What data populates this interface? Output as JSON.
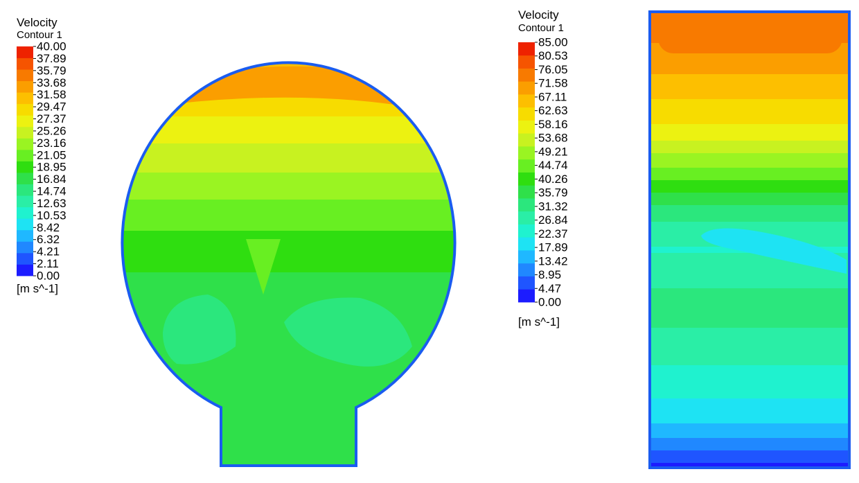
{
  "chart_data": [
    {
      "type": "heatmap",
      "title": "Velocity",
      "subtitle": "Contour 1",
      "unit": "[m s^-1]",
      "levels": [
        "0.00",
        "2.11",
        "4.21",
        "6.32",
        "8.42",
        "10.53",
        "12.63",
        "14.74",
        "16.84",
        "18.95",
        "21.05",
        "23.16",
        "25.26",
        "27.37",
        "29.47",
        "31.58",
        "33.68",
        "35.79",
        "37.89",
        "40.00"
      ],
      "range": [
        0,
        40
      ],
      "colormap": [
        "#1c1cff",
        "#1f55ff",
        "#2088ff",
        "#1fb8ff",
        "#1ee3f3",
        "#1ff2cf",
        "#2aeea6",
        "#2be77d",
        "#2fe04a",
        "#2fde10",
        "#68ef22",
        "#9af422",
        "#c8f220",
        "#ecf211",
        "#f7dc00",
        "#fdbf00",
        "#fb9e00",
        "#f87a00",
        "#f65400",
        "#ee2200"
      ],
      "field_shape": "circular domain with rectangular outlet at bottom",
      "zones_top_to_bottom": [
        {
          "velocity_range": [
            31.58,
            35.79
          ],
          "region": "upper cap"
        },
        {
          "velocity_range": [
            27.37,
            31.58
          ],
          "region": "upper band"
        },
        {
          "velocity_range": [
            21.05,
            27.37
          ],
          "region": "upper-middle bands"
        },
        {
          "velocity_range": [
            18.95,
            21.05
          ],
          "region": "middle band"
        },
        {
          "velocity_range": [
            12.63,
            18.95
          ],
          "region": "lower region and outlet"
        }
      ]
    },
    {
      "type": "heatmap",
      "title": "Velocity",
      "subtitle": "Contour 1",
      "unit": "[m s^-1]",
      "levels": [
        "0.00",
        "4.47",
        "8.95",
        "13.42",
        "17.89",
        "22.37",
        "26.84",
        "31.32",
        "35.79",
        "40.26",
        "44.74",
        "49.21",
        "53.68",
        "58.16",
        "62.63",
        "67.11",
        "71.58",
        "76.05",
        "80.53",
        "85.00"
      ],
      "range": [
        0,
        85
      ],
      "colormap": [
        "#1c1cff",
        "#1f55ff",
        "#2088ff",
        "#1fb8ff",
        "#1ee3f3",
        "#1ff2cf",
        "#2aeea6",
        "#2be77d",
        "#2fe04a",
        "#2fde10",
        "#68ef22",
        "#9af422",
        "#c8f220",
        "#ecf211",
        "#f7dc00",
        "#fdbf00",
        "#fb9e00",
        "#f87a00",
        "#f65400",
        "#ee2200"
      ],
      "field_shape": "rectangular domain",
      "zones_top_to_bottom": [
        {
          "velocity_range": [
            71.58,
            76.05
          ],
          "region": "top"
        },
        {
          "velocity_range": [
            44.74,
            71.58
          ],
          "region": "upper bands"
        },
        {
          "velocity_range": [
            22.37,
            44.74
          ],
          "region": "middle"
        },
        {
          "velocity_range": [
            0.0,
            22.37
          ],
          "region": "bottom bands"
        }
      ]
    }
  ]
}
